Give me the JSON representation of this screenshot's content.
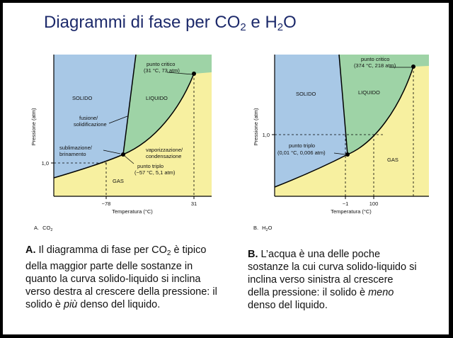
{
  "title": {
    "prefix": "Diagrammi di fase per CO",
    "sub1": "2",
    "mid": " e H",
    "sub2": "2",
    "suffix": "O"
  },
  "colors": {
    "solid": "#a8c8e6",
    "liquid": "#9ed3a6",
    "gas": "#f7f0a0",
    "title": "#1d2a6b"
  },
  "diagram_co2": {
    "y_axis_label": "Pressione (atm)",
    "x_axis_label": "Temperatura (°C)",
    "tick_y": "1,0",
    "tick_x1": "−78",
    "tick_x2": "31",
    "region_solid": "SOLIDO",
    "region_liquid": "LIQUIDO",
    "region_gas": "GAS",
    "critical_line1": "punto critico",
    "critical_line2": "(31 °C, 73 atm)",
    "fusion_line1": "fusione/",
    "fusion_line2": "solidificazione",
    "sublim_line1": "sublimazione/",
    "sublim_line2": "brinamento",
    "vap_line1": "vaporizzazione/",
    "vap_line2": "condensazione",
    "triple_line1": "punto triplo",
    "triple_line2": "(−57 °C, 5,1 atm)",
    "panel_letter": "A.",
    "panel_label": "CO",
    "panel_sub": "2"
  },
  "diagram_h2o": {
    "y_axis_label": "Pressione (atm)",
    "x_axis_label": "Temperatura (°C)",
    "tick_y": "1,0",
    "tick_x1": "−1",
    "tick_x2": "100",
    "region_solid": "SOLIDO",
    "region_liquid": "LIQUIDO",
    "region_gas": "GAS",
    "critical_line1": "punto critico",
    "critical_line2": "(374 °C, 218 atm)",
    "triple_line1": "punto triplo",
    "triple_line2": "(0,01 °C, 0,006 atm)",
    "panel_letter": "B.",
    "panel_label": "H",
    "panel_sub": "2",
    "panel_suffix": "O"
  },
  "caption_a": {
    "letter": "A.",
    "text1": " Il diagramma di fase per CO",
    "sub": "2",
    "text2": " è tipico della maggior parte delle sostanze in quanto la curva solido-liquido si inclina verso destra al crescere della pressione: il solido è ",
    "emph": "più",
    "text3": " denso del liquido."
  },
  "caption_b": {
    "letter": "B.",
    "text1": " L’acqua è una delle poche sostanze la cui curva solido-liquido si inclina verso sinistra al crescere della pressione: il solido è ",
    "emph": "meno",
    "text2": " denso del liquido."
  }
}
